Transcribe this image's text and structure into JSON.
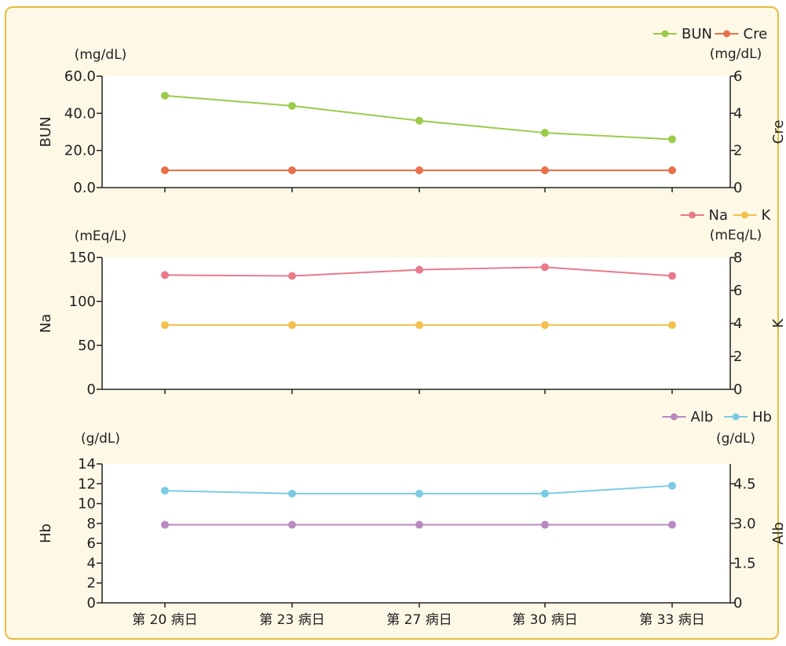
{
  "chart_data": [
    {
      "type": "line",
      "categories": [
        "第 20 病日",
        "第 23 病日",
        "第 27 病日",
        "第 30 病日",
        "第 33 病日"
      ],
      "left_axis": {
        "label": "BUN",
        "unit": "(mg/dL)",
        "ylim": [
          0,
          60
        ],
        "ticks": [
          "0.0",
          "20.0",
          "40.0",
          "60.0"
        ]
      },
      "right_axis": {
        "label": "Cre",
        "unit": "(mg/dL)",
        "ylim": [
          0,
          6
        ],
        "ticks": [
          "0",
          "2",
          "4",
          "6"
        ]
      },
      "series": [
        {
          "name": "BUN",
          "axis": "left",
          "color": "#9ccb4b",
          "values": [
            49.5,
            44.0,
            36.0,
            29.5,
            26.0
          ]
        },
        {
          "name": "Cre",
          "axis": "right",
          "color": "#e8704a",
          "values": [
            0.93,
            0.93,
            0.93,
            0.93,
            0.93
          ]
        }
      ]
    },
    {
      "type": "line",
      "categories": [
        "第 20 病日",
        "第 23 病日",
        "第 27 病日",
        "第 30 病日",
        "第 33 病日"
      ],
      "left_axis": {
        "label": "Na",
        "unit": "(mEq/L)",
        "ylim": [
          0,
          150
        ],
        "ticks": [
          "0",
          "50",
          "100",
          "150"
        ]
      },
      "right_axis": {
        "label": "K",
        "unit": "(mEq/L)",
        "ylim": [
          0,
          8
        ],
        "ticks": [
          "0",
          "2",
          "4",
          "6",
          "8"
        ]
      },
      "series": [
        {
          "name": "Na",
          "axis": "left",
          "color": "#e87a8c",
          "values": [
            130,
            129,
            136,
            139,
            129
          ]
        },
        {
          "name": "K",
          "axis": "right",
          "color": "#f2c04e",
          "values": [
            3.9,
            3.9,
            3.9,
            3.9,
            3.9
          ]
        }
      ]
    },
    {
      "type": "line",
      "categories": [
        "第 20 病日",
        "第 23 病日",
        "第 27 病日",
        "第 30 病日",
        "第 33 病日"
      ],
      "left_axis": {
        "label": "Hb",
        "unit": "(g/dL)",
        "ylim": [
          0,
          14
        ],
        "ticks": [
          "0",
          "2",
          "4",
          "6",
          "8",
          "10",
          "12",
          "14"
        ]
      },
      "right_axis": {
        "label": "Alb",
        "unit": "(g/dL)",
        "ylim": [
          0,
          5.25
        ],
        "ticks": [
          "0",
          "1.5",
          "3.0",
          "4.5"
        ]
      },
      "series": [
        {
          "name": "Alb",
          "axis": "right",
          "color": "#b98ac0",
          "values": [
            2.95,
            2.95,
            2.95,
            2.95,
            2.95
          ]
        },
        {
          "name": "Hb",
          "axis": "left",
          "color": "#7ccbe3",
          "values": [
            11.3,
            11.0,
            11.0,
            11.0,
            11.8
          ]
        }
      ]
    }
  ]
}
